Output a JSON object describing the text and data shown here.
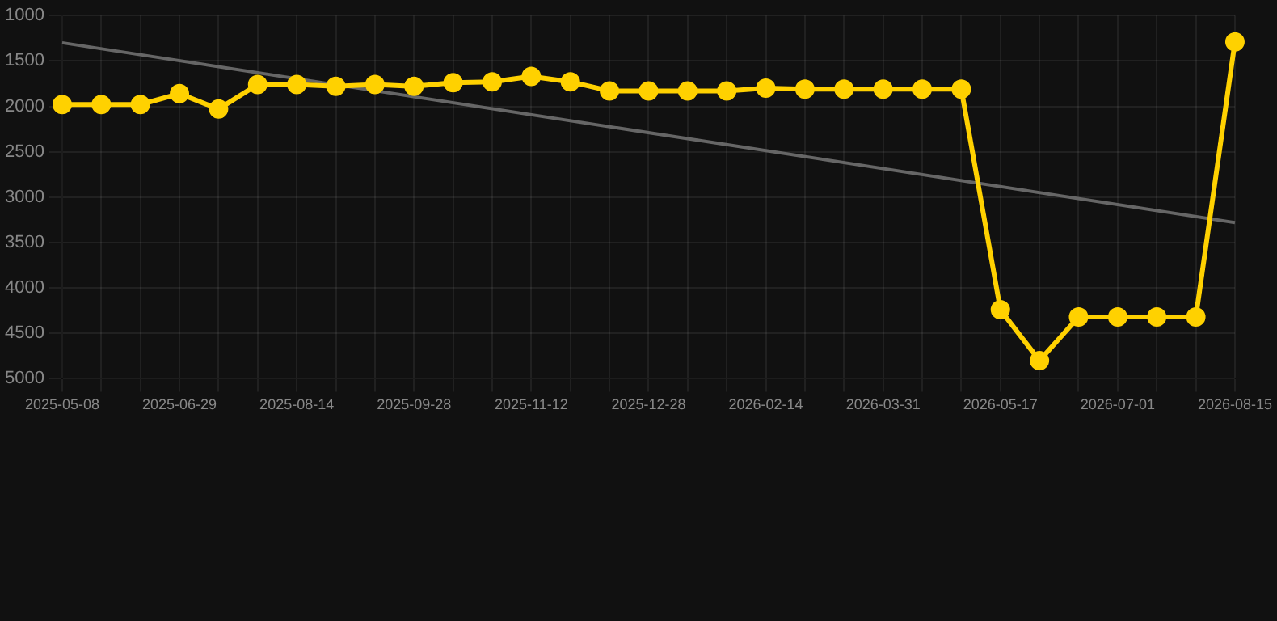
{
  "chart_data": {
    "type": "line",
    "categories": [
      "2025-05-08",
      null,
      null,
      "2025-06-29",
      null,
      null,
      "2025-08-14",
      null,
      null,
      "2025-09-28",
      null,
      null,
      "2025-11-12",
      null,
      null,
      "2025-12-28",
      null,
      null,
      "2026-02-14",
      null,
      null,
      "2026-03-31",
      null,
      null,
      "2026-05-17",
      null,
      null,
      "2026-07-01",
      null,
      null,
      "2026-08-15"
    ],
    "series": [
      {
        "color": "#ffd100",
        "marker": "circle",
        "values": [
          1980,
          1980,
          1980,
          1860,
          2030,
          1760,
          1760,
          1780,
          1760,
          1780,
          1740,
          1730,
          1670,
          1730,
          1830,
          1830,
          1830,
          1830,
          1800,
          1810,
          1810,
          1810,
          1810,
          1810,
          4240,
          4800,
          4320,
          4320,
          4320,
          4320,
          1290
        ]
      },
      {
        "color": "#666666",
        "marker": "none",
        "values": [
          1300,
          null,
          null,
          null,
          null,
          null,
          null,
          null,
          null,
          null,
          null,
          null,
          null,
          null,
          null,
          null,
          null,
          null,
          null,
          null,
          null,
          null,
          null,
          null,
          null,
          null,
          null,
          null,
          null,
          null,
          3280
        ]
      }
    ],
    "ylim": [
      5000,
      1000
    ],
    "yticks": [
      1000,
      1500,
      2000,
      2500,
      3000,
      3500,
      4000,
      4500,
      5000
    ],
    "grid": true,
    "line_style": "solid"
  }
}
